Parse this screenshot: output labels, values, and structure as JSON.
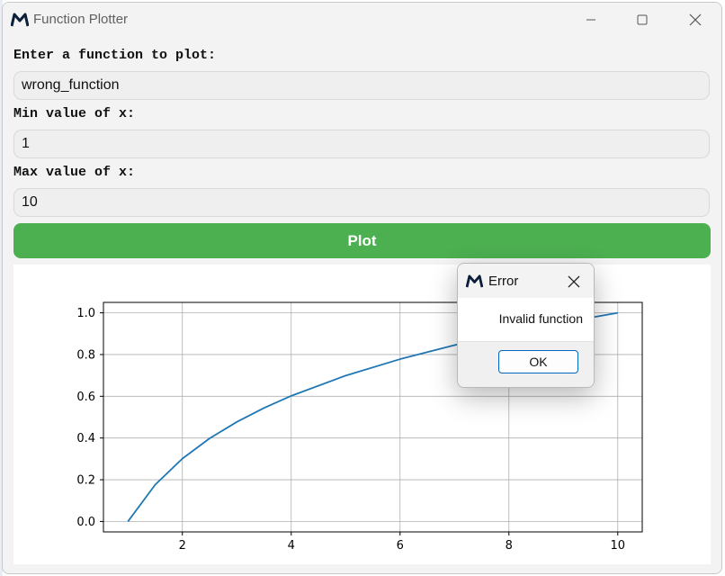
{
  "window": {
    "title": "Function Plotter"
  },
  "form": {
    "function_label": "Enter a function to plot:",
    "function_value": "wrong_function",
    "min_label": "Min value of x:",
    "min_value": "1",
    "max_label": "Max value of x:",
    "max_value": "10",
    "plot_button_label": "Plot",
    "plot_button_color": "#4caf50"
  },
  "dialog": {
    "title": "Error",
    "message": "Invalid function",
    "ok_label": "OK"
  },
  "icons": {
    "app": "app-logo-icon",
    "minimize": "minimize-icon",
    "maximize": "maximize-icon",
    "close": "close-icon"
  },
  "chart_data": {
    "type": "line",
    "title": "",
    "xlabel": "",
    "ylabel": "",
    "xlim": [
      0.55,
      10.45
    ],
    "ylim": [
      -0.05,
      1.05
    ],
    "grid": true,
    "x_ticks": [
      2,
      4,
      6,
      8,
      10
    ],
    "y_ticks": [
      0.0,
      0.2,
      0.4,
      0.6,
      0.8,
      1.0
    ],
    "x_tick_labels": [
      "2",
      "4",
      "6",
      "8",
      "10"
    ],
    "y_tick_labels": [
      "0.0",
      "0.2",
      "0.4",
      "0.6",
      "0.8",
      "1.0"
    ],
    "series": [
      {
        "color": "#1f77b4",
        "x": [
          1,
          1.5,
          2,
          2.5,
          3,
          3.5,
          4,
          5,
          6,
          7,
          8,
          9,
          10
        ],
        "y": [
          0.0,
          0.176,
          0.301,
          0.398,
          0.477,
          0.544,
          0.602,
          0.699,
          0.778,
          0.845,
          0.903,
          0.954,
          1.0
        ]
      }
    ]
  }
}
